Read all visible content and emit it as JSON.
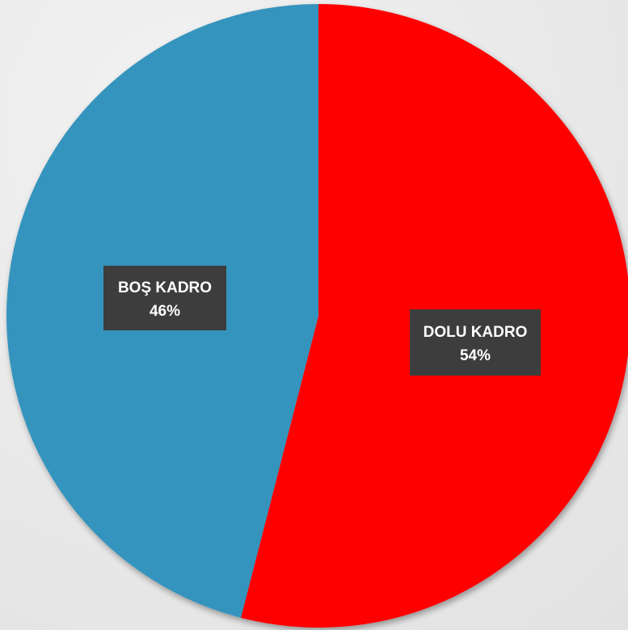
{
  "chart_data": {
    "type": "pie",
    "title": "",
    "categories": [
      "DOLU KADRO",
      "BOŞ KADRO"
    ],
    "values": [
      54,
      46
    ],
    "percent_labels": [
      "54%",
      "46%"
    ],
    "colors": [
      "#ff0000",
      "#3694bd"
    ],
    "start_angle_deg": 0,
    "direction": "clockwise",
    "legend": "none",
    "data_labels": "category and percent, dark boxes"
  }
}
